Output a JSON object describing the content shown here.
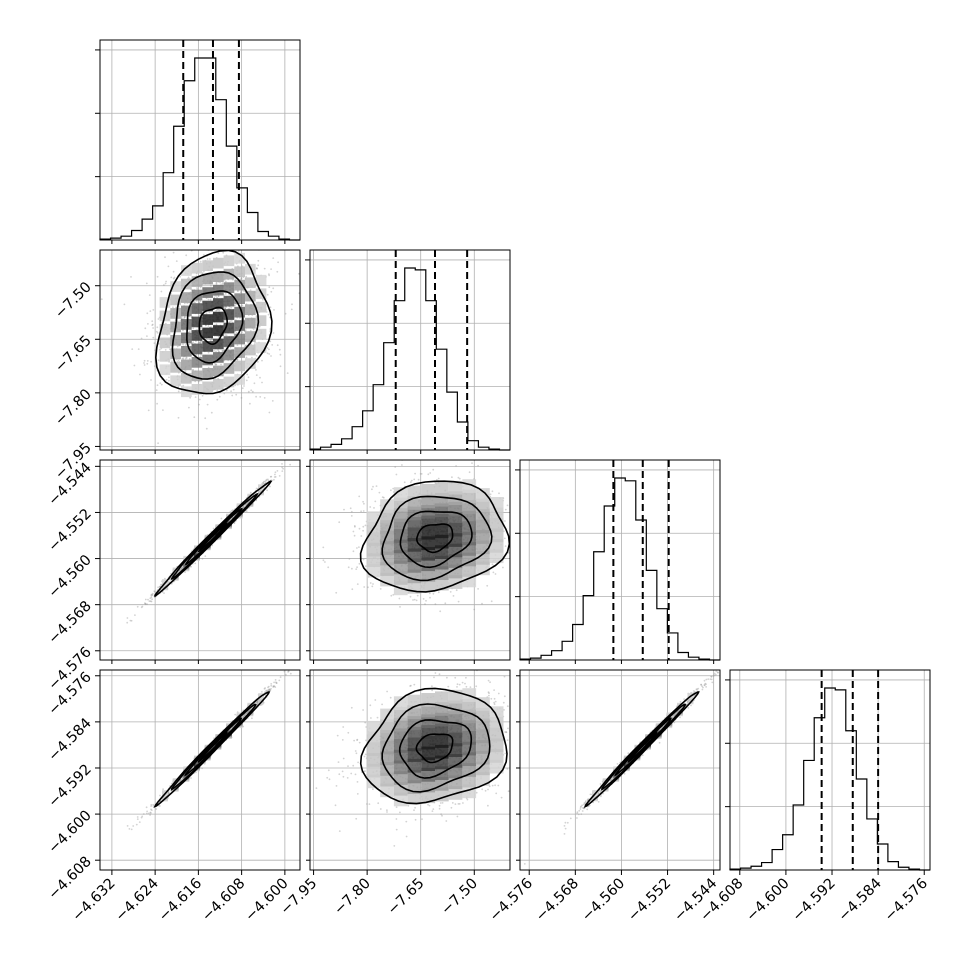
{
  "chart_data": {
    "type": "corner",
    "title": "",
    "parameters": [
      {
        "ticks": [
          "−4.632",
          "−4.624",
          "−4.616",
          "−4.608",
          "−4.600"
        ],
        "tick_values": [
          -4.632,
          -4.624,
          -4.616,
          -4.608,
          -4.6
        ],
        "range": [
          -4.6342,
          -4.5972
        ],
        "quantiles": [
          -4.6188,
          -4.6133,
          -4.6085
        ]
      },
      {
        "ticks": [
          "−7.95",
          "−7.80",
          "−7.65",
          "−7.50"
        ],
        "tick_values": [
          -7.95,
          -7.8,
          -7.65,
          -7.5
        ],
        "range": [
          -7.96,
          -7.4
        ],
        "quantiles": [
          -7.72,
          -7.61,
          -7.52
        ]
      },
      {
        "ticks": [
          "−4.576",
          "−4.568",
          "−4.560",
          "−4.552",
          "−4.544"
        ],
        "tick_values": [
          -4.576,
          -4.568,
          -4.56,
          -4.552,
          -4.544
        ],
        "range": [
          -4.5776,
          -4.5429
        ],
        "quantiles": [
          -4.5614,
          -4.5563,
          -4.5518
        ]
      },
      {
        "ticks": [
          "−4.608",
          "−4.600",
          "−4.592",
          "−4.584",
          "−4.576"
        ],
        "tick_values": [
          -4.608,
          -4.6,
          -4.592,
          -4.584,
          -4.576
        ],
        "range": [
          -4.6097,
          -4.575
        ],
        "quantiles": [
          -4.5938,
          -4.5884,
          -4.584
        ]
      }
    ],
    "marginal_histograms": [
      {
        "counts": [
          1,
          2,
          4,
          10,
          22,
          36,
          71,
          120,
          168,
          192,
          192,
          148,
          99,
          55,
          29,
          9,
          4,
          1,
          0
        ]
      },
      {
        "counts": [
          1,
          3,
          6,
          12,
          25,
          42,
          70,
          115,
          160,
          195,
          193,
          160,
          108,
          62,
          30,
          10,
          3,
          1,
          0
        ]
      },
      {
        "counts": [
          1,
          2,
          5,
          10,
          20,
          38,
          69,
          116,
          165,
          195,
          192,
          150,
          96,
          55,
          29,
          8,
          3,
          1,
          0
        ]
      },
      {
        "counts": [
          1,
          2,
          4,
          8,
          22,
          38,
          70,
          118,
          164,
          196,
          194,
          150,
          98,
          55,
          28,
          9,
          3,
          1,
          0
        ]
      }
    ],
    "correlations": [
      {
        "row": 1,
        "col": 0,
        "rho": 0.18
      },
      {
        "row": 2,
        "col": 0,
        "rho": 0.995
      },
      {
        "row": 2,
        "col": 1,
        "rho": 0.15
      },
      {
        "row": 3,
        "col": 0,
        "rho": 0.995
      },
      {
        "row": 3,
        "col": 1,
        "rho": 0.15
      },
      {
        "row": 3,
        "col": 2,
        "rho": 0.995
      }
    ],
    "contour_levels": [
      0.5,
      1.0,
      1.5,
      2.0
    ],
    "grid": true,
    "colors": {
      "hist": "#000000",
      "points": "#9e9e9e",
      "density_dark": "#111111"
    }
  }
}
